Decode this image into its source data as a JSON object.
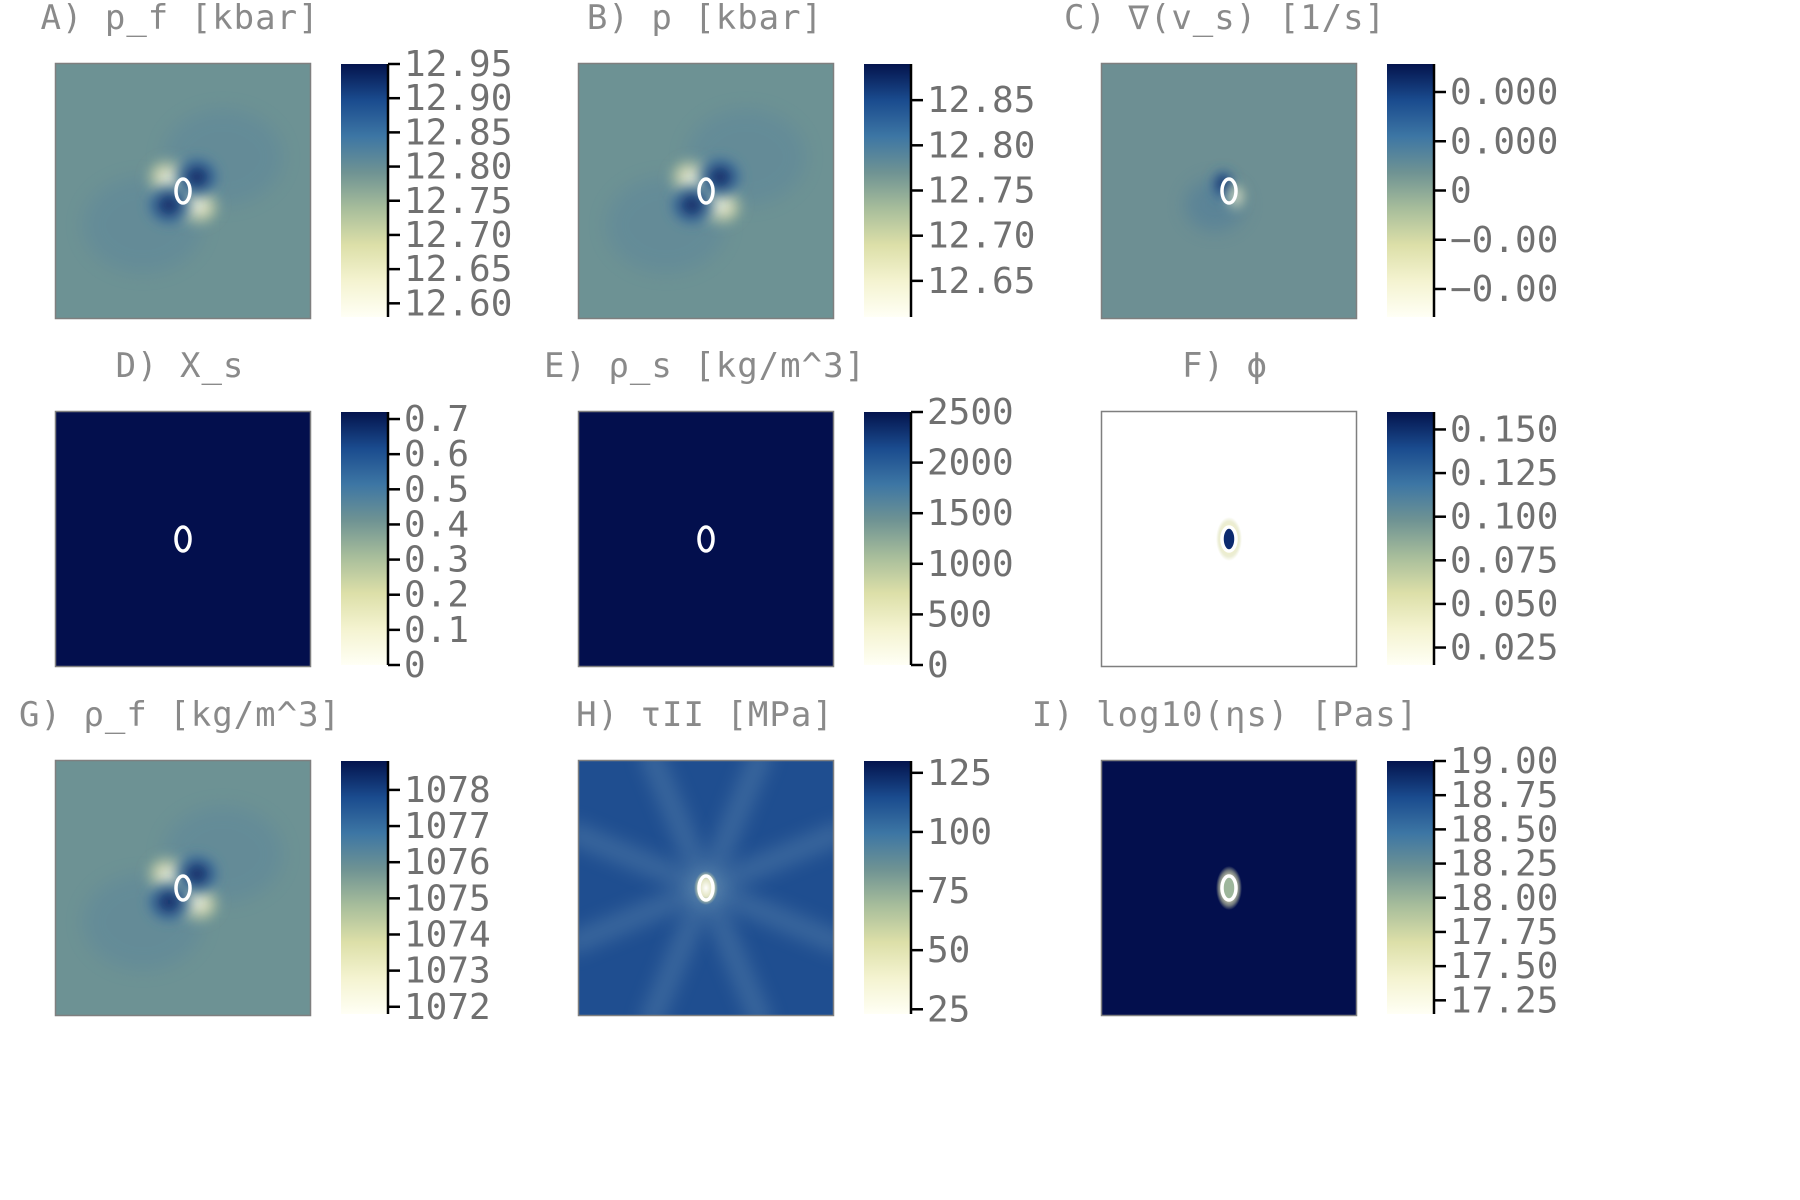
{
  "figure": {
    "colormap": [
      "#fffff5",
      "#f4f3d0",
      "#dcdfa8",
      "#a7bd9b",
      "#6f9393",
      "#3d76a4",
      "#1a4b8e",
      "#04144d"
    ],
    "colors": {
      "title_text": "#8a8a8a",
      "axis": "#000000",
      "tick_text": "#707070",
      "frame": "#7f7f7f",
      "ellipse": "#ffffff"
    }
  },
  "chart_data": [
    {
      "type": "heatmap",
      "title": "A) p_f [kbar]",
      "pattern": "quadrupole",
      "center_color": "#6d9294",
      "colorbar_ticks": [
        "12.95",
        "12.90",
        "12.85",
        "12.80",
        "12.75",
        "12.70",
        "12.65",
        "12.60"
      ],
      "colorbar_range": [
        12.58,
        12.95
      ]
    },
    {
      "type": "heatmap",
      "title": "B) p [kbar]",
      "pattern": "quadrupole",
      "center_color": "#6d9294",
      "colorbar_ticks": [
        "12.85",
        "12.80",
        "12.75",
        "12.70",
        "12.65"
      ],
      "colorbar_range": [
        12.61,
        12.89
      ]
    },
    {
      "type": "heatmap",
      "title": "C) ∇(v_s) [1/s]",
      "pattern": "small-dipole",
      "center_color": "#6d8f93",
      "colorbar_ticks": [
        "0.000",
        "0.000",
        "0",
        "−0.00",
        "−0.00"
      ],
      "colorbar_range": [
        -1,
        1
      ]
    },
    {
      "type": "heatmap",
      "title": "D) X_s",
      "pattern": "uniform",
      "center_color": "#030f4d",
      "colorbar_ticks": [
        "0.7",
        "0.6",
        "0.5",
        "0.4",
        "0.3",
        "0.2",
        "0.1",
        "0"
      ],
      "colorbar_range": [
        0,
        0.72
      ]
    },
    {
      "type": "heatmap",
      "title": "E) ρ_s [kg/m^3]",
      "pattern": "uniform",
      "center_color": "#030f4d",
      "colorbar_ticks": [
        "2500",
        "2000",
        "1500",
        "1000",
        "500",
        "0"
      ],
      "colorbar_range": [
        0,
        2500
      ]
    },
    {
      "type": "heatmap",
      "title": "F) ϕ",
      "pattern": "spot",
      "center_color": "#ffffff",
      "colorbar_ticks": [
        "0.150",
        "0.125",
        "0.100",
        "0.075",
        "0.050",
        "0.025"
      ],
      "colorbar_range": [
        0.015,
        0.16
      ]
    },
    {
      "type": "heatmap",
      "title": "G) ρ_f [kg/m^3]",
      "pattern": "quadrupole",
      "center_color": "#6d9294",
      "colorbar_ticks": [
        "1078",
        "1077",
        "1076",
        "1075",
        "1074",
        "1073",
        "1072"
      ],
      "colorbar_range": [
        1071.8,
        1078.8
      ]
    },
    {
      "type": "heatmap",
      "title": "H) τII [MPa]",
      "pattern": "rays",
      "center_color": "#1f4e90",
      "colorbar_ticks": [
        "125",
        "100",
        "75",
        "50",
        "25"
      ],
      "colorbar_range": [
        23,
        130
      ]
    },
    {
      "type": "heatmap",
      "title": "I) log10(ηs) [Pas]",
      "pattern": "spot",
      "center_color": "#030f4d",
      "colorbar_ticks": [
        "19.00",
        "18.75",
        "18.50",
        "18.25",
        "18.00",
        "17.75",
        "17.50",
        "17.25"
      ],
      "colorbar_range": [
        17.15,
        19.0
      ]
    }
  ]
}
